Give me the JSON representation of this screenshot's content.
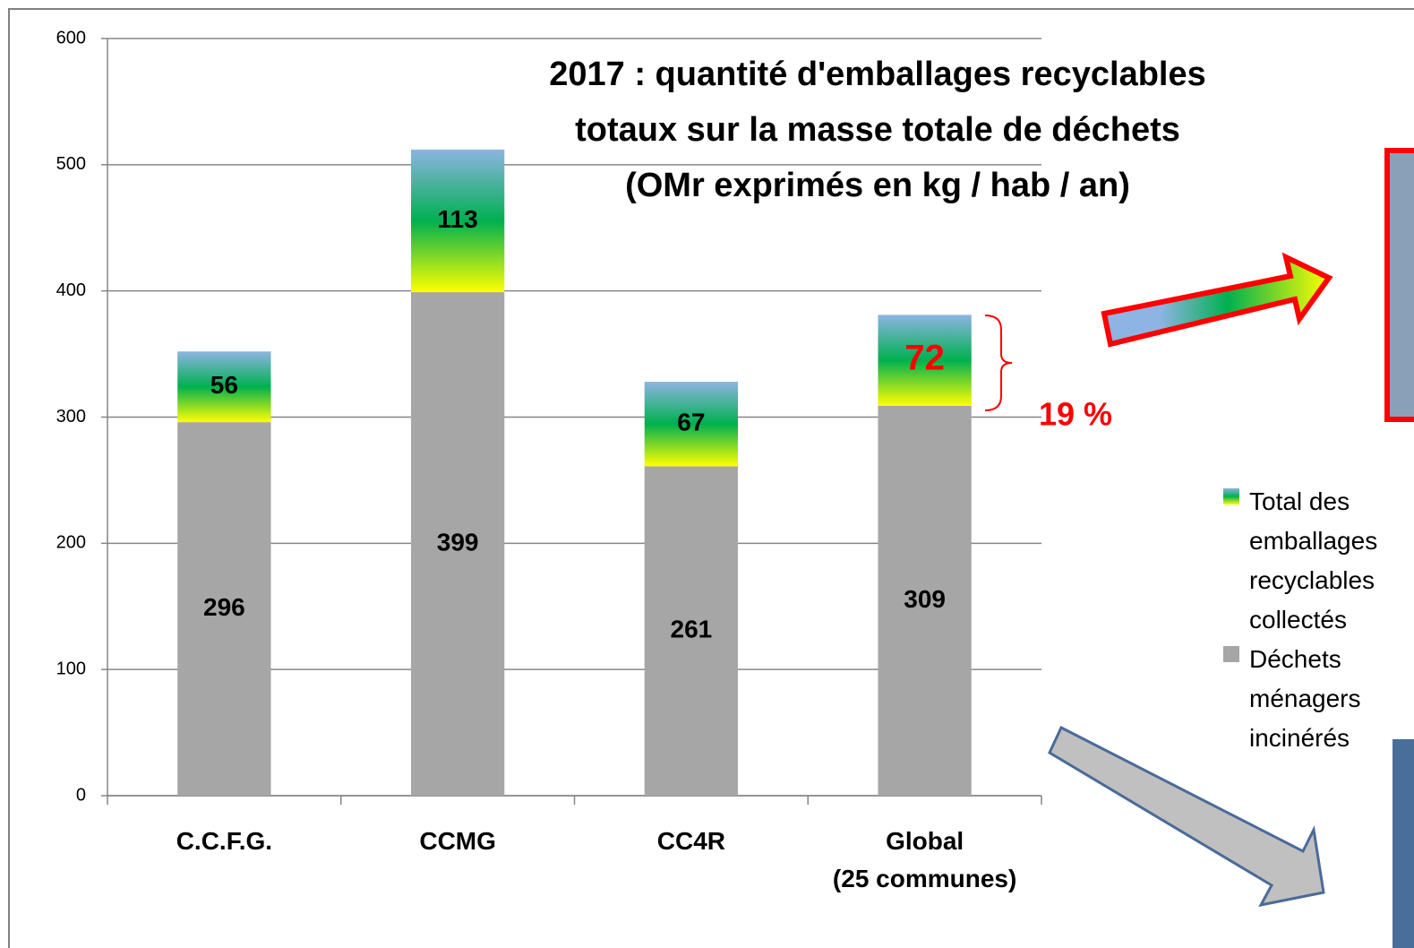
{
  "chart_data": {
    "type": "stacked_bar",
    "title": "2017 : quantité d'emballages recyclables\ntotaux sur la masse totale de déchets\n(OMr exprimés en kg / hab / an)",
    "categories": [
      "C.C.F.G.",
      "CCMG",
      "CC4R",
      "Global\n(25 communes)"
    ],
    "series": [
      {
        "name": "Déchets ménagers incinérés",
        "color": "#a6a6a6",
        "values": [
          296,
          399,
          261,
          309
        ]
      },
      {
        "name": "Total des emballages recyclables collectés",
        "color": [
          "#8db4e2",
          "#00b050",
          "#ffff00"
        ],
        "values": [
          56,
          113,
          67,
          72
        ]
      }
    ],
    "annotations": [
      "19 %"
    ],
    "ylim": [
      0,
      600
    ],
    "yticks": [
      0,
      100,
      200,
      300,
      400,
      500,
      600
    ],
    "grid": true,
    "legend": "right"
  }
}
